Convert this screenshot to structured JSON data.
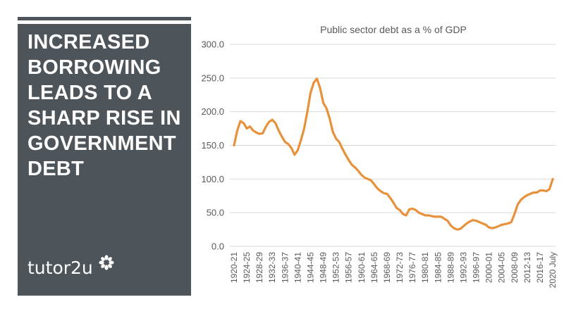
{
  "panel": {
    "headline_lines": [
      "INCREASED",
      "BORROWING",
      "LEADS TO A",
      "SHARP RISE IN",
      "GOVERNMENT",
      "DEBT"
    ],
    "brand": "tutor2u",
    "brand_icon": "asterisk-flower-icon"
  },
  "colors": {
    "panel": "#4d555b",
    "series": "#e8913b",
    "grid": "#d9d9d9",
    "text": "#595959"
  },
  "chart_data": {
    "type": "line",
    "title": "Public sector debt as a % of GDP",
    "xlabel": "",
    "ylabel": "",
    "ylim": [
      0,
      300
    ],
    "yticks": [
      "0.0",
      "50.0",
      "100.0",
      "150.0",
      "200.0",
      "250.0",
      "300.0"
    ],
    "grid": true,
    "legend": "none",
    "x_tick_labels": [
      "1920-21",
      "1924-25",
      "1928-29",
      "1932-33",
      "1936-37",
      "1940-41",
      "1944-45",
      "1948-49",
      "1952-53",
      "1956-57",
      "1960-61",
      "1964-65",
      "1968-69",
      "1972-73",
      "1976-77",
      "1980-81",
      "1984-85",
      "1988-89",
      "1992-93",
      "1996-97",
      "2000-01",
      "2004-05",
      "2008-09",
      "2012-13",
      "2016-17",
      "2020 July"
    ],
    "series": [
      {
        "values": [
          {
            "x": "1920-21",
            "y": 150
          },
          {
            "x": "1921-22",
            "y": 172
          },
          {
            "x": "1922-23",
            "y": 186
          },
          {
            "x": "1923-24",
            "y": 183
          },
          {
            "x": "1924-25",
            "y": 175
          },
          {
            "x": "1925-26",
            "y": 178
          },
          {
            "x": "1926-27",
            "y": 172
          },
          {
            "x": "1927-28",
            "y": 169
          },
          {
            "x": "1928-29",
            "y": 167
          },
          {
            "x": "1929-30",
            "y": 168
          },
          {
            "x": "1930-31",
            "y": 178
          },
          {
            "x": "1931-32",
            "y": 185
          },
          {
            "x": "1932-33",
            "y": 188
          },
          {
            "x": "1933-34",
            "y": 183
          },
          {
            "x": "1934-35",
            "y": 172
          },
          {
            "x": "1935-36",
            "y": 163
          },
          {
            "x": "1936-37",
            "y": 155
          },
          {
            "x": "1937-38",
            "y": 152
          },
          {
            "x": "1938-39",
            "y": 146
          },
          {
            "x": "1939-40",
            "y": 136
          },
          {
            "x": "1940-41",
            "y": 143
          },
          {
            "x": "1941-42",
            "y": 158
          },
          {
            "x": "1942-43",
            "y": 175
          },
          {
            "x": "1943-44",
            "y": 200
          },
          {
            "x": "1944-45",
            "y": 228
          },
          {
            "x": "1945-46",
            "y": 243
          },
          {
            "x": "1946-47",
            "y": 249
          },
          {
            "x": "1947-48",
            "y": 235
          },
          {
            "x": "1948-49",
            "y": 213
          },
          {
            "x": "1949-50",
            "y": 205
          },
          {
            "x": "1950-51",
            "y": 190
          },
          {
            "x": "1951-52",
            "y": 170
          },
          {
            "x": "1952-53",
            "y": 160
          },
          {
            "x": "1953-54",
            "y": 155
          },
          {
            "x": "1954-55",
            "y": 145
          },
          {
            "x": "1955-56",
            "y": 136
          },
          {
            "x": "1956-57",
            "y": 128
          },
          {
            "x": "1957-58",
            "y": 121
          },
          {
            "x": "1958-59",
            "y": 117
          },
          {
            "x": "1959-60",
            "y": 112
          },
          {
            "x": "1960-61",
            "y": 106
          },
          {
            "x": "1961-62",
            "y": 102
          },
          {
            "x": "1962-63",
            "y": 100
          },
          {
            "x": "1963-64",
            "y": 98
          },
          {
            "x": "1964-65",
            "y": 92
          },
          {
            "x": "1965-66",
            "y": 86
          },
          {
            "x": "1966-67",
            "y": 82
          },
          {
            "x": "1967-68",
            "y": 79
          },
          {
            "x": "1968-69",
            "y": 78
          },
          {
            "x": "1969-70",
            "y": 72
          },
          {
            "x": "1970-71",
            "y": 65
          },
          {
            "x": "1971-72",
            "y": 57
          },
          {
            "x": "1972-73",
            "y": 54
          },
          {
            "x": "1973-74",
            "y": 48
          },
          {
            "x": "1974-75",
            "y": 46
          },
          {
            "x": "1975-76",
            "y": 55
          },
          {
            "x": "1976-77",
            "y": 56
          },
          {
            "x": "1977-78",
            "y": 54
          },
          {
            "x": "1978-79",
            "y": 50
          },
          {
            "x": "1979-80",
            "y": 48
          },
          {
            "x": "1980-81",
            "y": 46
          },
          {
            "x": "1981-82",
            "y": 46
          },
          {
            "x": "1982-83",
            "y": 45
          },
          {
            "x": "1983-84",
            "y": 44
          },
          {
            "x": "1984-85",
            "y": 44
          },
          {
            "x": "1985-86",
            "y": 44
          },
          {
            "x": "1986-87",
            "y": 41
          },
          {
            "x": "1987-88",
            "y": 38
          },
          {
            "x": "1988-89",
            "y": 31
          },
          {
            "x": "1989-90",
            "y": 27
          },
          {
            "x": "1990-91",
            "y": 25
          },
          {
            "x": "1991-92",
            "y": 26
          },
          {
            "x": "1992-93",
            "y": 30
          },
          {
            "x": "1993-94",
            "y": 34
          },
          {
            "x": "1994-95",
            "y": 37
          },
          {
            "x": "1995-96",
            "y": 39
          },
          {
            "x": "1996-97",
            "y": 38
          },
          {
            "x": "1997-98",
            "y": 36
          },
          {
            "x": "1998-99",
            "y": 34
          },
          {
            "x": "1999-00",
            "y": 32
          },
          {
            "x": "2000-01",
            "y": 28
          },
          {
            "x": "2001-02",
            "y": 27
          },
          {
            "x": "2002-03",
            "y": 28
          },
          {
            "x": "2003-04",
            "y": 30
          },
          {
            "x": "2004-05",
            "y": 32
          },
          {
            "x": "2005-06",
            "y": 33
          },
          {
            "x": "2006-07",
            "y": 34
          },
          {
            "x": "2007-08",
            "y": 36
          },
          {
            "x": "2008-09",
            "y": 48
          },
          {
            "x": "2009-10",
            "y": 62
          },
          {
            "x": "2010-11",
            "y": 69
          },
          {
            "x": "2011-12",
            "y": 73
          },
          {
            "x": "2012-13",
            "y": 76
          },
          {
            "x": "2013-14",
            "y": 78
          },
          {
            "x": "2014-15",
            "y": 80
          },
          {
            "x": "2015-16",
            "y": 80
          },
          {
            "x": "2016-17",
            "y": 83
          },
          {
            "x": "2017-18",
            "y": 83
          },
          {
            "x": "2018-19",
            "y": 82
          },
          {
            "x": "2019-20",
            "y": 85
          },
          {
            "x": "2020 July",
            "y": 100
          }
        ]
      }
    ]
  }
}
